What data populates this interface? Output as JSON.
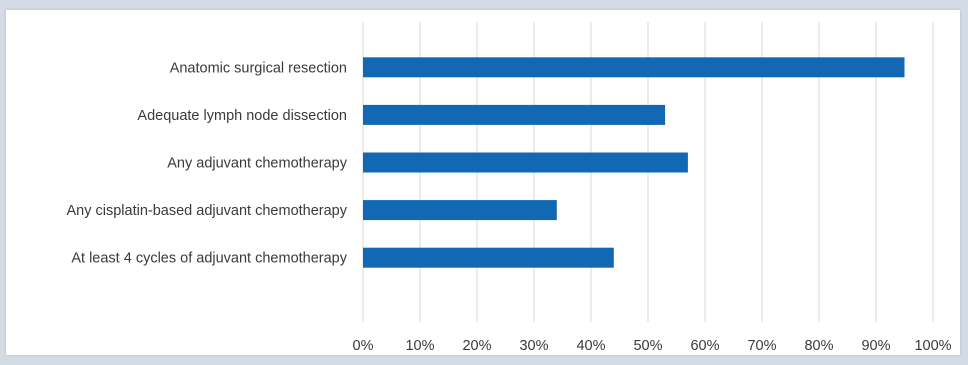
{
  "chart_data": {
    "type": "bar",
    "orientation": "horizontal",
    "categories": [
      "Anatomic surgical resection",
      "Adequate lymph node dissection",
      "Any adjuvant chemotherapy",
      "Any cisplatin-based adjuvant chemotherapy",
      "At least 4 cycles of adjuvant chemotherapy"
    ],
    "values": [
      95,
      53,
      57,
      34,
      44
    ],
    "xlim": [
      0,
      100
    ],
    "x_ticks": [
      "0%",
      "10%",
      "20%",
      "30%",
      "40%",
      "50%",
      "60%",
      "70%",
      "80%",
      "90%",
      "100%"
    ],
    "grid": "vertical",
    "title": "",
    "xlabel": "",
    "ylabel": "",
    "bar_color": "#1268b3",
    "grid_color": "#d9d9d9"
  }
}
